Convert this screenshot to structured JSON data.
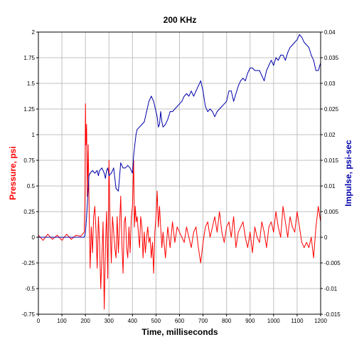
{
  "chart_data": {
    "type": "line",
    "title": "200 KHz",
    "xlabel": "Time, milliseconds",
    "ylabel_left": "Pressure, psi",
    "ylabel_right": "Impulse, psi-sec",
    "xlim": [
      0,
      1200
    ],
    "ylim_left": [
      -0.75,
      2
    ],
    "ylim_right": [
      -0.015,
      0.04
    ],
    "grid": true,
    "x_ticks": [
      0,
      100,
      200,
      300,
      400,
      500,
      600,
      700,
      800,
      900,
      1000,
      1100,
      1200
    ],
    "y_left_ticks": [
      "-0.75",
      "-0.5",
      "-0.25",
      "0",
      "0.25",
      "0.5",
      "0.75",
      "1",
      "1.25",
      "1.5",
      "1.75",
      "2"
    ],
    "y_right_ticks": [
      "-0.015",
      "-0.01",
      "-0.005",
      "0",
      "0.005",
      "0.01",
      "0.015",
      "0.02",
      "0.025",
      "0.03",
      "0.035",
      "0.04"
    ],
    "colors": {
      "pressure": "#ff0000",
      "impulse": "#0000aa",
      "grid": "#c0c0c0",
      "frame": "#000000"
    },
    "series": [
      {
        "axis": "left",
        "color": "#ff0000",
        "x": [
          0,
          20,
          40,
          60,
          80,
          100,
          120,
          140,
          160,
          180,
          195,
          198,
          200,
          202,
          205,
          208,
          212,
          216,
          220,
          225,
          230,
          235,
          240,
          245,
          250,
          255,
          260,
          265,
          270,
          275,
          280,
          285,
          290,
          295,
          300,
          305,
          310,
          315,
          320,
          325,
          330,
          335,
          340,
          345,
          350,
          355,
          360,
          365,
          370,
          375,
          380,
          385,
          390,
          395,
          400,
          405,
          408,
          412,
          416,
          420,
          425,
          430,
          435,
          440,
          445,
          450,
          455,
          460,
          465,
          470,
          475,
          480,
          485,
          490,
          495,
          500,
          505,
          510,
          515,
          520,
          525,
          530,
          540,
          550,
          560,
          570,
          580,
          590,
          600,
          610,
          620,
          630,
          640,
          650,
          660,
          670,
          680,
          690,
          700,
          710,
          720,
          730,
          740,
          750,
          760,
          770,
          780,
          790,
          800,
          810,
          820,
          830,
          840,
          850,
          860,
          870,
          880,
          890,
          900,
          910,
          920,
          930,
          940,
          950,
          960,
          970,
          980,
          990,
          1000,
          1010,
          1020,
          1030,
          1040,
          1050,
          1060,
          1070,
          1080,
          1090,
          1100,
          1110,
          1120,
          1130,
          1140,
          1150,
          1160,
          1170,
          1180,
          1190,
          1200
        ],
        "y": [
          0.02,
          -0.03,
          0.03,
          -0.02,
          0.02,
          -0.03,
          0.03,
          -0.02,
          0.02,
          0.01,
          0.05,
          0.4,
          1.3,
          0.9,
          1.1,
          0.4,
          0.9,
          0.2,
          -0.3,
          0.1,
          -0.15,
          0.2,
          0.3,
          0.05,
          -0.3,
          0.2,
          -0.05,
          -0.5,
          -0.2,
          0.15,
          -0.7,
          -0.1,
          0.25,
          -0.4,
          0.75,
          0.1,
          -0.25,
          0.2,
          0.05,
          -0.1,
          -0.2,
          0.2,
          -0.15,
          0.1,
          0.4,
          -0.05,
          -0.35,
          0.15,
          0.2,
          -0.1,
          -0.2,
          0.1,
          -0.15,
          0.2,
          0.3,
          0.75,
          0.1,
          0.3,
          0.15,
          0.2,
          0.05,
          -0.1,
          0.2,
          0.1,
          -0.2,
          0.05,
          -0.15,
          0.0,
          0.1,
          -0.05,
          0.0,
          -0.2,
          -0.05,
          -0.35,
          0.05,
          0.2,
          0.45,
          0.1,
          0.3,
          0.1,
          -0.1,
          0.05,
          -0.2,
          0.1,
          -0.1,
          0.15,
          -0.05,
          0.1,
          0.05,
          0.0,
          -0.05,
          0.1,
          0.0,
          -0.1,
          0.05,
          0.1,
          -0.1,
          -0.25,
          -0.05,
          0.1,
          0.15,
          0.0,
          0.1,
          0.2,
          0.05,
          0.25,
          0.05,
          -0.05,
          0.1,
          0.15,
          0.0,
          0.2,
          -0.1,
          0.05,
          0.1,
          0.15,
          0.0,
          -0.1,
          0.05,
          -0.15,
          0.1,
          0.0,
          -0.05,
          0.15,
          0.05,
          -0.1,
          0.1,
          0.15,
          0.05,
          0.25,
          0.1,
          0.0,
          0.3,
          0.15,
          0.0,
          0.2,
          0.1,
          0.05,
          0.25,
          0.1,
          -0.05,
          -0.1,
          -0.05,
          -0.1,
          0.0,
          -0.2,
          0.1,
          0.3,
          0.15
        ],
        "name": ""
      },
      {
        "axis": "right",
        "color": "#0000aa",
        "x": [
          0,
          50,
          100,
          150,
          195,
          200,
          205,
          210,
          215,
          220,
          230,
          240,
          250,
          255,
          260,
          270,
          280,
          285,
          290,
          295,
          300,
          310,
          320,
          330,
          340,
          350,
          360,
          370,
          380,
          390,
          400,
          405,
          410,
          415,
          420,
          430,
          440,
          450,
          460,
          470,
          480,
          490,
          500,
          505,
          510,
          515,
          520,
          525,
          530,
          540,
          550,
          560,
          570,
          580,
          590,
          600,
          610,
          620,
          630,
          640,
          650,
          660,
          670,
          680,
          690,
          700,
          710,
          720,
          730,
          740,
          750,
          760,
          770,
          780,
          790,
          800,
          810,
          820,
          830,
          840,
          850,
          860,
          870,
          880,
          890,
          900,
          910,
          920,
          930,
          940,
          950,
          960,
          970,
          980,
          990,
          1000,
          1010,
          1020,
          1030,
          1040,
          1050,
          1060,
          1070,
          1080,
          1090,
          1100,
          1110,
          1120,
          1130,
          1140,
          1150,
          1160,
          1170,
          1180,
          1190,
          1200
        ],
        "y": [
          0,
          0,
          0,
          0,
          0,
          0.001,
          0.004,
          0.008,
          0.012,
          0.0125,
          0.013,
          0.0125,
          0.013,
          0.012,
          0.013,
          0.0135,
          0.0125,
          0.0115,
          0.013,
          0.0135,
          0.012,
          0.0125,
          0.0135,
          0.0095,
          0.009,
          0.0145,
          0.0135,
          0.0135,
          0.014,
          0.0135,
          0.0125,
          0.016,
          0.018,
          0.02,
          0.021,
          0.0215,
          0.022,
          0.0225,
          0.0245,
          0.0265,
          0.0275,
          0.0265,
          0.0245,
          0.0235,
          0.0215,
          0.022,
          0.0245,
          0.0225,
          0.0215,
          0.022,
          0.023,
          0.0245,
          0.0245,
          0.025,
          0.0255,
          0.026,
          0.0265,
          0.0275,
          0.028,
          0.0275,
          0.0285,
          0.0275,
          0.0285,
          0.0295,
          0.0305,
          0.0285,
          0.0255,
          0.0245,
          0.025,
          0.0245,
          0.0235,
          0.0245,
          0.025,
          0.0255,
          0.026,
          0.0265,
          0.0285,
          0.0285,
          0.0265,
          0.028,
          0.0295,
          0.0305,
          0.031,
          0.0305,
          0.032,
          0.033,
          0.033,
          0.0325,
          0.0325,
          0.0325,
          0.0315,
          0.0305,
          0.0325,
          0.0335,
          0.0345,
          0.0335,
          0.035,
          0.0345,
          0.0355,
          0.0355,
          0.0345,
          0.036,
          0.037,
          0.0375,
          0.038,
          0.0385,
          0.0395,
          0.039,
          0.038,
          0.0375,
          0.037,
          0.0355,
          0.0345,
          0.0325,
          0.0325,
          0.034
        ]
      }
    ]
  }
}
